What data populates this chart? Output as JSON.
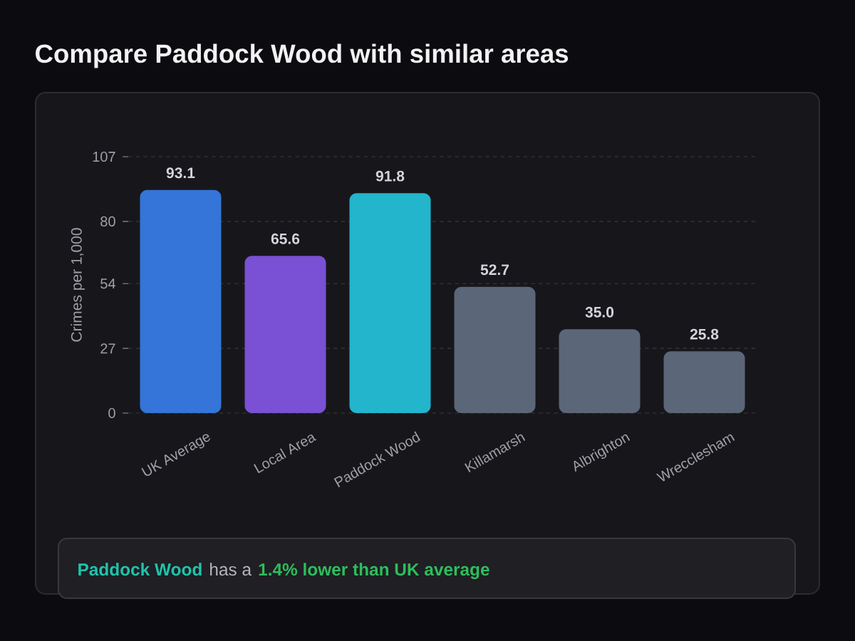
{
  "chart_data": {
    "type": "bar",
    "title": "Compare Paddock Wood with similar areas",
    "ylabel": "Crimes per 1,000",
    "categories": [
      "UK Average",
      "Local Area",
      "Paddock Wood",
      "Killamarsh",
      "Albrighton",
      "Wrecclesham"
    ],
    "values": [
      93.1,
      65.6,
      91.8,
      52.7,
      35,
      25.8
    ],
    "value_labels": [
      "93.1",
      "65.6",
      "91.8",
      "52.7",
      "35.0",
      "25.8"
    ],
    "colors": [
      "#3574d8",
      "#7a50d4",
      "#22b5cc",
      "#5b6678",
      "#5b6678",
      "#5b6678"
    ],
    "ylim": [
      0,
      107
    ],
    "yticks": [
      0,
      27,
      54,
      80,
      107
    ],
    "grid": "y",
    "annotations": [
      "Paddock Wood",
      "has a",
      "1.4% lower than UK average"
    ]
  }
}
